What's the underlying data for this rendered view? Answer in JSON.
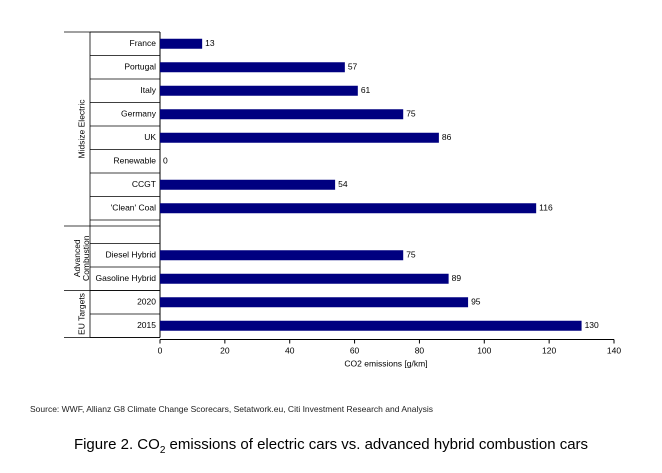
{
  "chart_data": {
    "type": "bar",
    "orientation": "horizontal",
    "xlabel": "CO2 emissions [g/km]",
    "xlim": [
      0,
      140
    ],
    "xticks": [
      0,
      20,
      40,
      60,
      80,
      100,
      120,
      140
    ],
    "bar_color": "#000080",
    "groups": [
      {
        "label": "Midsize Electric",
        "from": 0,
        "to": 7
      },
      {
        "label": "Advanced Combustion",
        "from": 9,
        "to": 10
      },
      {
        "label": "EU Targets",
        "from": 11,
        "to": 12
      }
    ],
    "categories": [
      "France",
      "Portugal",
      "Italy",
      "Germany",
      "UK",
      "Renewable",
      "CCGT",
      "'Clean' Coal",
      "",
      "Diesel Hybrid",
      "Gasoline Hybrid",
      "2020",
      "2015"
    ],
    "values": [
      13,
      57,
      61,
      75,
      86,
      0,
      54,
      116,
      null,
      75,
      89,
      95,
      130
    ]
  },
  "source": "Source: WWF, Allianz G8 Climate Change Scorecars, Setatwork.eu, Citi Investment Research and Analysis",
  "caption": {
    "prefix": "Figure 2. CO",
    "sub": "2",
    "suffix": " emissions of electric cars vs. advanced hybrid combustion cars"
  }
}
